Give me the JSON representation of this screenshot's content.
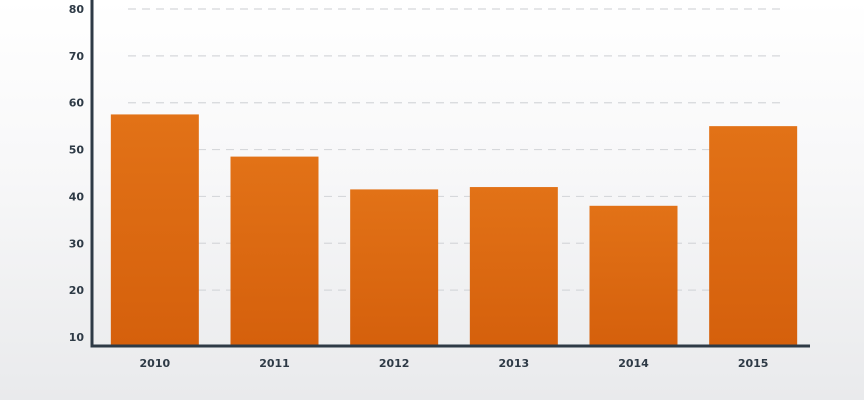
{
  "chart_data": {
    "type": "bar",
    "categories": [
      "2010",
      "2011",
      "2012",
      "2013",
      "2014",
      "2015"
    ],
    "values": [
      57.5,
      48.5,
      41.5,
      42,
      38,
      55
    ],
    "title": "",
    "xlabel": "",
    "ylabel": "",
    "ylim": [
      8,
      82
    ],
    "yticks": [
      10,
      20,
      30,
      40,
      50,
      60,
      70,
      80
    ],
    "grid": true,
    "bar_color": "#e06a12",
    "bar_color_dark": "#d45f0c",
    "axis_color": "#2e3a46"
  }
}
